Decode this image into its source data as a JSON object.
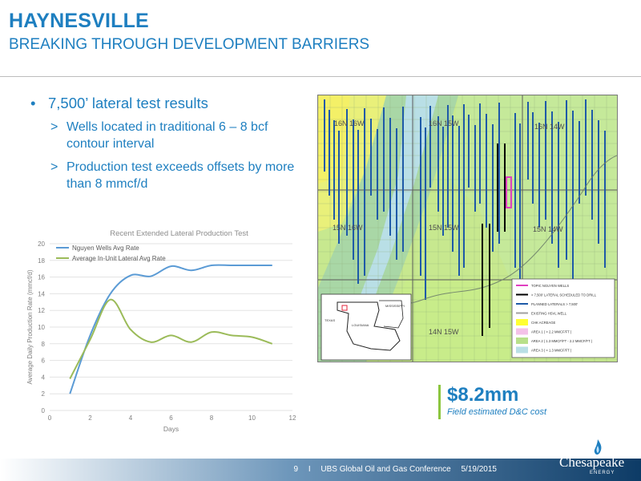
{
  "header": {
    "title": "HAYNESVILLE",
    "subtitle": "BREAKING THROUGH DEVELOPMENT BARRIERS"
  },
  "bullets": {
    "main": "7,500’ lateral test results",
    "subs": [
      "Wells located in traditional 6 – 8 bcf contour interval",
      "Production test exceeds offsets by more than 8 mmcf/d"
    ]
  },
  "chart_data": {
    "type": "line",
    "title": "Recent Extended Lateral Production Test",
    "xlabel": "Days",
    "ylabel": "Average Daily Production Rate (mmcf/d)",
    "xlim": [
      0,
      12
    ],
    "ylim": [
      0,
      20
    ],
    "xticks": [
      0,
      2,
      4,
      6,
      8,
      10,
      12
    ],
    "yticks": [
      0,
      2,
      4,
      6,
      8,
      10,
      12,
      14,
      16,
      18,
      20
    ],
    "legend_position": "top-left",
    "series": [
      {
        "name": "Nguyen Wells Avg Rate",
        "color": "#5b9bd5",
        "x": [
          1,
          2,
          3,
          4,
          5,
          6,
          7,
          8,
          9,
          10,
          11
        ],
        "y": [
          2.0,
          9.0,
          14.0,
          16.2,
          16.1,
          17.3,
          16.8,
          17.4,
          17.4,
          17.4,
          17.4
        ]
      },
      {
        "name": "Average In-Unit Lateral Avg Rate",
        "color": "#9bbb59",
        "x": [
          1,
          2,
          3,
          4,
          5,
          6,
          7,
          8,
          9,
          10,
          11
        ],
        "y": [
          3.8,
          8.5,
          13.3,
          9.7,
          8.2,
          9.0,
          8.2,
          9.4,
          9.0,
          8.8,
          8.0
        ]
      }
    ]
  },
  "map": {
    "township_labels": [
      "16N 16W",
      "16N 15W",
      "16N 14W",
      "15N 16W",
      "15N 15W",
      "15N 14W",
      "14N 15W"
    ],
    "legend": [
      {
        "label": "TOPIC NGUYEN WELLS",
        "color": "#e040c0",
        "kind": "line"
      },
      {
        "label": "> 7,500' LATERAL SCHEDULED TO DRILL",
        "color": "#000000",
        "kind": "line"
      },
      {
        "label": "PLANNED LATERALS > 7,500'",
        "color": "#1e5aa8",
        "kind": "line"
      },
      {
        "label": "EXISTING HSVL WELL",
        "color": "#a0a0a0",
        "kind": "line"
      },
      {
        "label": "CHK ACREAGE",
        "color": "#ffff33",
        "kind": "box"
      },
      {
        "label": "AREA 1 ( > 2.2 MMCF/FT )",
        "color": "#f4c2e8",
        "kind": "box"
      },
      {
        "label": "AREA 2 ( 1.3 MMCF/FT - 2.2 MMCF/FT )",
        "color": "#b8e08a",
        "kind": "box"
      },
      {
        "label": "AREA 3 ( < 1.3 MMCF/FT )",
        "color": "#b9dfe6",
        "kind": "box"
      }
    ],
    "inset_labels": [
      "TEXAS",
      "LOUISIANA",
      "MISSISSIPPI"
    ]
  },
  "cost": {
    "value": "$8.2mm",
    "label": "Field estimated D&C cost"
  },
  "footer": {
    "page": "9",
    "sep": "I",
    "conference": "UBS Global Oil and Gas Conference",
    "date": "5/19/2015"
  },
  "logo": {
    "name": "Chesapeake",
    "sub": "ENERGY"
  }
}
